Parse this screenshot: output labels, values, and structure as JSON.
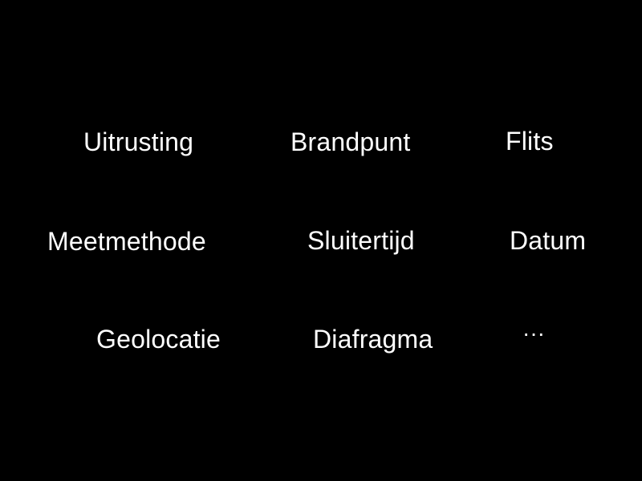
{
  "screen": {
    "background_color": "#000000",
    "text_color": "#ffffff",
    "items": [
      {
        "label": "Uitrusting"
      },
      {
        "label": "Brandpunt"
      },
      {
        "label": "Flits"
      },
      {
        "label": "Meetmethode"
      },
      {
        "label": "Sluitertijd"
      },
      {
        "label": "Datum"
      },
      {
        "label": "Geolocatie"
      },
      {
        "label": "Diafragma"
      },
      {
        "label": "···"
      }
    ]
  }
}
